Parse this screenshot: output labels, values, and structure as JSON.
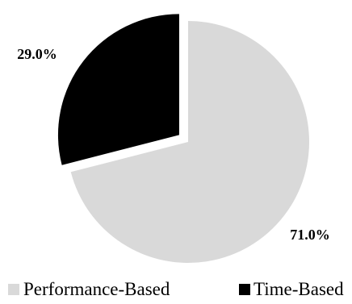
{
  "chart_data": {
    "type": "pie",
    "categories": [
      "Performance-Based",
      "Time-Based"
    ],
    "values": [
      71.0,
      29.0
    ],
    "data_labels": [
      "71.0%",
      "29.0%"
    ],
    "colors": [
      "#d9d9d9",
      "#000000"
    ],
    "exploded": [
      "Time-Based"
    ],
    "start": "12 o'clock, clockwise",
    "legend": {
      "position": "bottom",
      "items": [
        "Performance-Based",
        "Time-Based"
      ]
    }
  }
}
